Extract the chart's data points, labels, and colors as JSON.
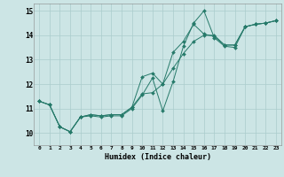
{
  "bg_color": "#cce5e5",
  "grid_color": "#aacccc",
  "line_color": "#267a6a",
  "xlabel": "Humidex (Indice chaleur)",
  "xlim": [
    -0.5,
    23.5
  ],
  "ylim": [
    9.5,
    15.3
  ],
  "yticks": [
    10,
    11,
    12,
    13,
    14,
    15
  ],
  "xticks": [
    0,
    1,
    2,
    3,
    4,
    5,
    6,
    7,
    8,
    9,
    10,
    11,
    12,
    13,
    14,
    15,
    16,
    17,
    18,
    19,
    20,
    21,
    22,
    23
  ],
  "series": [
    {
      "x": [
        0,
        1,
        2,
        3,
        4,
        5,
        6,
        7,
        8,
        9,
        10,
        11,
        12,
        13,
        14,
        15,
        16,
        17,
        18,
        19,
        20,
        21,
        22,
        23
      ],
      "y": [
        11.3,
        11.15,
        10.25,
        10.05,
        10.65,
        10.7,
        10.65,
        10.7,
        10.7,
        11.0,
        11.55,
        12.25,
        10.9,
        12.1,
        13.55,
        14.5,
        15.0,
        13.9,
        13.55,
        13.5,
        14.35,
        14.45,
        14.5,
        14.6
      ]
    },
    {
      "x": [
        0,
        1,
        2,
        3,
        4,
        5,
        6,
        7,
        8,
        9,
        10,
        11,
        12,
        13,
        14,
        15,
        16,
        17,
        18,
        19,
        20,
        21,
        22,
        23
      ],
      "y": [
        11.3,
        11.15,
        10.25,
        10.05,
        10.65,
        10.75,
        10.7,
        10.75,
        10.75,
        11.05,
        11.6,
        11.65,
        12.0,
        12.65,
        13.25,
        13.75,
        14.0,
        14.0,
        13.6,
        13.6,
        14.35,
        14.45,
        14.5,
        14.6
      ]
    },
    {
      "x": [
        0,
        1,
        2,
        3,
        4,
        5,
        6,
        7,
        8,
        9,
        10,
        11,
        12,
        13,
        14,
        15,
        16,
        17,
        18,
        19,
        20,
        21,
        22,
        23
      ],
      "y": [
        11.3,
        11.15,
        10.25,
        10.05,
        10.65,
        10.75,
        10.7,
        10.75,
        10.75,
        11.05,
        12.3,
        12.45,
        12.0,
        13.3,
        13.75,
        14.45,
        14.05,
        13.95,
        13.6,
        13.6,
        14.35,
        14.45,
        14.5,
        14.6
      ]
    }
  ]
}
